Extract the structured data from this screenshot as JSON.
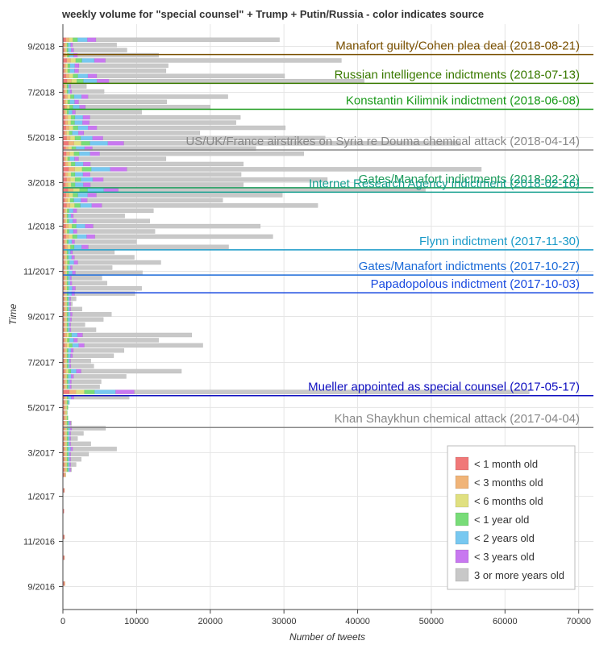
{
  "chart_data": {
    "type": "bar",
    "orientation": "horizontal-stacked",
    "title": "weekly volume for \"special counsel\" + Trump + Putin/Russia - color indicates source",
    "xlabel": "Number of tweets",
    "ylabel": "Time",
    "xlim": [
      0,
      72000
    ],
    "x_ticks": [
      0,
      10000,
      20000,
      30000,
      40000,
      50000,
      60000,
      70000
    ],
    "y_range": [
      "2016-08-01",
      "2018-10-01"
    ],
    "y_ticks": [
      {
        "date": "2016-09-01",
        "label": "9/2016"
      },
      {
        "date": "2016-11-01",
        "label": "11/2016"
      },
      {
        "date": "2017-01-01",
        "label": "1/2017"
      },
      {
        "date": "2017-03-01",
        "label": "3/2017"
      },
      {
        "date": "2017-05-01",
        "label": "5/2017"
      },
      {
        "date": "2017-07-01",
        "label": "7/2017"
      },
      {
        "date": "2017-09-01",
        "label": "9/2017"
      },
      {
        "date": "2017-11-01",
        "label": "11/2017"
      },
      {
        "date": "2018-01-01",
        "label": "1/2018"
      },
      {
        "date": "2018-03-01",
        "label": "3/2018"
      },
      {
        "date": "2018-05-01",
        "label": "5/2018"
      },
      {
        "date": "2018-07-01",
        "label": "7/2018"
      },
      {
        "date": "2018-09-01",
        "label": "9/2018"
      }
    ],
    "series": [
      {
        "name": "< 1 month old",
        "color": "#f07878"
      },
      {
        "name": "< 3 months old",
        "color": "#f0b478"
      },
      {
        "name": "< 6 months old",
        "color": "#e0e080"
      },
      {
        "name": "< 1 year old",
        "color": "#78dc78"
      },
      {
        "name": "< 2 years old",
        "color": "#78c8f0"
      },
      {
        "name": "< 3 years old",
        "color": "#c878f0"
      },
      {
        "name": "3 or more years old",
        "color": "#c8c8c8"
      }
    ],
    "week_totals": [
      {
        "week": "2016-09-05",
        "total": 300
      },
      {
        "week": "2016-10-10",
        "total": 200
      },
      {
        "week": "2016-11-07",
        "total": 200
      },
      {
        "week": "2016-12-12",
        "total": 150
      },
      {
        "week": "2017-01-09",
        "total": 200
      },
      {
        "week": "2017-01-30",
        "total": 400
      },
      {
        "week": "2017-02-06",
        "total": 1200
      },
      {
        "week": "2017-02-13",
        "total": 1800
      },
      {
        "week": "2017-02-20",
        "total": 2500
      },
      {
        "week": "2017-02-27",
        "total": 3500
      },
      {
        "week": "2017-03-06",
        "total": 7300
      },
      {
        "week": "2017-03-13",
        "total": 3800
      },
      {
        "week": "2017-03-20",
        "total": 2000
      },
      {
        "week": "2017-03-27",
        "total": 2800
      },
      {
        "week": "2017-04-03",
        "total": 5800
      },
      {
        "week": "2017-04-10",
        "total": 1200
      },
      {
        "week": "2017-04-17",
        "total": 700
      },
      {
        "week": "2017-04-24",
        "total": 600
      },
      {
        "week": "2017-05-01",
        "total": 700
      },
      {
        "week": "2017-05-08",
        "total": 900
      },
      {
        "week": "2017-05-15",
        "total": 9000
      },
      {
        "week": "2017-05-22",
        "total": 63300
      },
      {
        "week": "2017-05-29",
        "total": 5000
      },
      {
        "week": "2017-06-05",
        "total": 5200
      },
      {
        "week": "2017-06-12",
        "total": 8600
      },
      {
        "week": "2017-06-19",
        "total": 16100
      },
      {
        "week": "2017-06-26",
        "total": 4200
      },
      {
        "week": "2017-07-03",
        "total": 3800
      },
      {
        "week": "2017-07-10",
        "total": 6900
      },
      {
        "week": "2017-07-17",
        "total": 8300
      },
      {
        "week": "2017-07-24",
        "total": 19000
      },
      {
        "week": "2017-07-31",
        "total": 13000
      },
      {
        "week": "2017-08-07",
        "total": 17500
      },
      {
        "week": "2017-08-14",
        "total": 4500
      },
      {
        "week": "2017-08-21",
        "total": 3000
      },
      {
        "week": "2017-08-28",
        "total": 5500
      },
      {
        "week": "2017-09-04",
        "total": 6600
      },
      {
        "week": "2017-09-11",
        "total": 2600
      },
      {
        "week": "2017-09-18",
        "total": 1300
      },
      {
        "week": "2017-09-25",
        "total": 1800
      },
      {
        "week": "2017-10-02",
        "total": 9800
      },
      {
        "week": "2017-10-09",
        "total": 10700
      },
      {
        "week": "2017-10-16",
        "total": 6000
      },
      {
        "week": "2017-10-23",
        "total": 5300
      },
      {
        "week": "2017-10-30",
        "total": 10800
      },
      {
        "week": "2017-11-06",
        "total": 6700
      },
      {
        "week": "2017-11-13",
        "total": 13300
      },
      {
        "week": "2017-11-20",
        "total": 9700
      },
      {
        "week": "2017-11-27",
        "total": 7000
      },
      {
        "week": "2017-12-04",
        "total": 22500
      },
      {
        "week": "2017-12-11",
        "total": 10000
      },
      {
        "week": "2017-12-18",
        "total": 28500
      },
      {
        "week": "2017-12-25",
        "total": 12500
      },
      {
        "week": "2018-01-01",
        "total": 26800
      },
      {
        "week": "2018-01-08",
        "total": 11800
      },
      {
        "week": "2018-01-15",
        "total": 8400
      },
      {
        "week": "2018-01-22",
        "total": 12300
      },
      {
        "week": "2018-01-29",
        "total": 34600
      },
      {
        "week": "2018-02-05",
        "total": 21700
      },
      {
        "week": "2018-02-12",
        "total": 29800
      },
      {
        "week": "2018-02-19",
        "total": 49200
      },
      {
        "week": "2018-02-26",
        "total": 24500
      },
      {
        "week": "2018-03-05",
        "total": 35900
      },
      {
        "week": "2018-03-12",
        "total": 24200
      },
      {
        "week": "2018-03-19",
        "total": 56800
      },
      {
        "week": "2018-03-26",
        "total": 24500
      },
      {
        "week": "2018-04-02",
        "total": 14000
      },
      {
        "week": "2018-04-09",
        "total": 32700
      },
      {
        "week": "2018-04-16",
        "total": 26200
      },
      {
        "week": "2018-04-23",
        "total": 54000
      },
      {
        "week": "2018-04-30",
        "total": 35600
      },
      {
        "week": "2018-05-07",
        "total": 18600
      },
      {
        "week": "2018-05-14",
        "total": 30200
      },
      {
        "week": "2018-05-21",
        "total": 23500
      },
      {
        "week": "2018-05-28",
        "total": 24100
      },
      {
        "week": "2018-06-04",
        "total": 10700
      },
      {
        "week": "2018-06-11",
        "total": 20000
      },
      {
        "week": "2018-06-18",
        "total": 14100
      },
      {
        "week": "2018-06-25",
        "total": 22400
      },
      {
        "week": "2018-07-02",
        "total": 5600
      },
      {
        "week": "2018-07-09",
        "total": 3200
      },
      {
        "week": "2018-07-16",
        "total": 40900
      },
      {
        "week": "2018-07-23",
        "total": 30100
      },
      {
        "week": "2018-07-30",
        "total": 14000
      },
      {
        "week": "2018-08-06",
        "total": 14300
      },
      {
        "week": "2018-08-13",
        "total": 37800
      },
      {
        "week": "2018-08-20",
        "total": 13000
      },
      {
        "week": "2018-08-27",
        "total": 8700
      },
      {
        "week": "2018-09-03",
        "total": 7300
      },
      {
        "week": "2018-09-10",
        "total": 29400
      }
    ],
    "events": [
      {
        "label": "Manafort guilty/Cohen plea deal (2018-08-21)",
        "date": "2018-08-21",
        "color": "#7a5000"
      },
      {
        "label": "Russian intelligence indictments (2018-07-13)",
        "date": "2018-07-13",
        "color": "#3a7a00"
      },
      {
        "label": "Konstantin Kilimnik indictment (2018-06-08)",
        "date": "2018-06-08",
        "color": "#1a9a1a"
      },
      {
        "label": "US/UK/France airstrikes on Syria re Douma chemical attack (2018-04-14)",
        "date": "2018-04-14",
        "color": "#888888"
      },
      {
        "label": "Gates/Manafort indictments (2018-02-22)",
        "date": "2018-02-22",
        "color": "#1a9a5a"
      },
      {
        "label": "Internet Research Agency indictment (2018-02-16)",
        "date": "2018-02-16",
        "color": "#16a090"
      },
      {
        "label": "Flynn indictment (2017-11-30)",
        "date": "2017-11-30",
        "color": "#1a9ac8"
      },
      {
        "label": "Gates/Manafort indictments (2017-10-27)",
        "date": "2017-10-27",
        "color": "#1a6ad8"
      },
      {
        "label": "Papadopolous indictment (2017-10-03)",
        "date": "2017-10-03",
        "color": "#1a4ae0"
      },
      {
        "label": "Mueller appointed as special counsel (2017-05-17)",
        "date": "2017-05-17",
        "color": "#1010c0"
      },
      {
        "label": "Khan Shaykhun chemical attack (2017-04-04)",
        "date": "2017-04-04",
        "color": "#888888"
      }
    ],
    "legend_position": "bottom-right",
    "grid": true
  }
}
